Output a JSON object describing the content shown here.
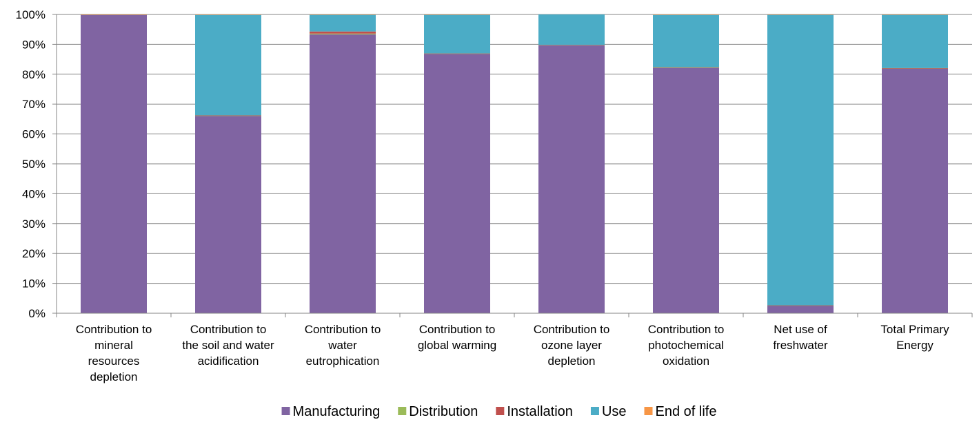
{
  "chart_data": {
    "type": "bar",
    "stacked": true,
    "percent_stacked": true,
    "title": "",
    "xlabel": "",
    "ylabel": "",
    "ylim": [
      0,
      100
    ],
    "y_ticks": [
      "0%",
      "10%",
      "20%",
      "30%",
      "40%",
      "50%",
      "60%",
      "70%",
      "80%",
      "90%",
      "100%"
    ],
    "grid": "horizontal",
    "legend_position": "bottom",
    "categories": [
      [
        "Contribution to",
        "mineral",
        "resources",
        "depletion"
      ],
      [
        "Contribution to",
        "the soil and water",
        "acidification"
      ],
      [
        "Contribution to",
        "water",
        "eutrophication"
      ],
      [
        "Contribution to",
        "global warming"
      ],
      [
        "Contribution to",
        "ozone layer",
        "depletion"
      ],
      [
        "Contribution to",
        "photochemical",
        "oxidation"
      ],
      [
        "Net use of",
        "freshwater"
      ],
      [
        "Total Primary",
        "Energy"
      ]
    ],
    "series": [
      {
        "name": "Manufacturing",
        "color": "#8064A2",
        "values": [
          99.9,
          66.0,
          93.3,
          86.8,
          89.7,
          82.1,
          2.6,
          81.9
        ]
      },
      {
        "name": "Distribution",
        "color": "#9BBB59",
        "values": [
          0.02,
          0.2,
          0.3,
          0.1,
          0.05,
          0.2,
          0.02,
          0.1
        ]
      },
      {
        "name": "Installation",
        "color": "#C0504D",
        "values": [
          0.01,
          0.05,
          0.7,
          0.05,
          0.05,
          0.05,
          0.01,
          0.05
        ]
      },
      {
        "name": "Use",
        "color": "#4BACC6",
        "values": [
          0.05,
          33.6,
          5.6,
          13.0,
          10.2,
          17.5,
          97.35,
          17.9
        ]
      },
      {
        "name": "End of life",
        "color": "#F79646",
        "values": [
          0.02,
          0.15,
          0.1,
          0.05,
          0.0,
          0.15,
          0.02,
          0.05
        ]
      }
    ]
  }
}
